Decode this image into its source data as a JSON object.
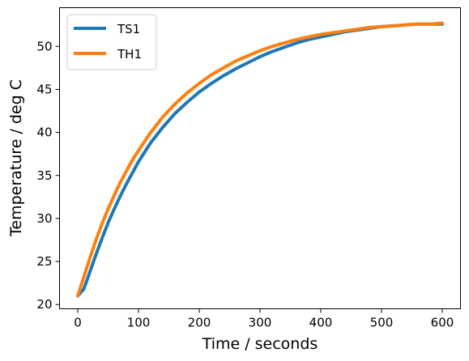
{
  "chart_data": {
    "type": "line",
    "title": "",
    "xlabel": "Time / seconds",
    "ylabel": "Temperature / deg C",
    "xlim": [
      -30,
      630
    ],
    "ylim": [
      19.5,
      54.5
    ],
    "xticks": [
      0,
      100,
      200,
      300,
      400,
      500,
      600
    ],
    "yticks": [
      20,
      25,
      30,
      35,
      40,
      45,
      50
    ],
    "grid": false,
    "legend_position": "top-left",
    "series": [
      {
        "name": "TS1",
        "color": "#1f77b4",
        "x": [
          0,
          10,
          20,
          30,
          40,
          50,
          60,
          70,
          80,
          90,
          100,
          120,
          140,
          160,
          180,
          200,
          220,
          240,
          260,
          280,
          300,
          320,
          340,
          360,
          380,
          400,
          420,
          440,
          460,
          480,
          500,
          520,
          540,
          560,
          580,
          600
        ],
        "y": [
          21.0,
          21.8,
          23.8,
          25.8,
          27.7,
          29.5,
          31.1,
          32.6,
          34.0,
          35.3,
          36.6,
          38.8,
          40.6,
          42.2,
          43.5,
          44.7,
          45.7,
          46.6,
          47.4,
          48.1,
          48.8,
          49.4,
          49.9,
          50.4,
          50.8,
          51.1,
          51.4,
          51.7,
          51.9,
          52.1,
          52.3,
          52.4,
          52.5,
          52.6,
          52.6,
          52.6
        ]
      },
      {
        "name": "TH1",
        "color": "#ff7f0e",
        "x": [
          0,
          10,
          20,
          30,
          40,
          50,
          60,
          70,
          80,
          90,
          100,
          120,
          140,
          160,
          180,
          200,
          220,
          240,
          260,
          280,
          300,
          320,
          340,
          360,
          380,
          400,
          420,
          440,
          460,
          480,
          500,
          520,
          540,
          560,
          580,
          600
        ],
        "y": [
          21.0,
          23.2,
          25.4,
          27.5,
          29.4,
          31.1,
          32.7,
          34.2,
          35.5,
          36.8,
          37.9,
          40.0,
          41.8,
          43.3,
          44.6,
          45.7,
          46.7,
          47.5,
          48.3,
          48.9,
          49.5,
          50.0,
          50.4,
          50.8,
          51.1,
          51.4,
          51.6,
          51.8,
          52.0,
          52.2,
          52.3,
          52.4,
          52.5,
          52.6,
          52.6,
          52.7
        ]
      }
    ]
  }
}
